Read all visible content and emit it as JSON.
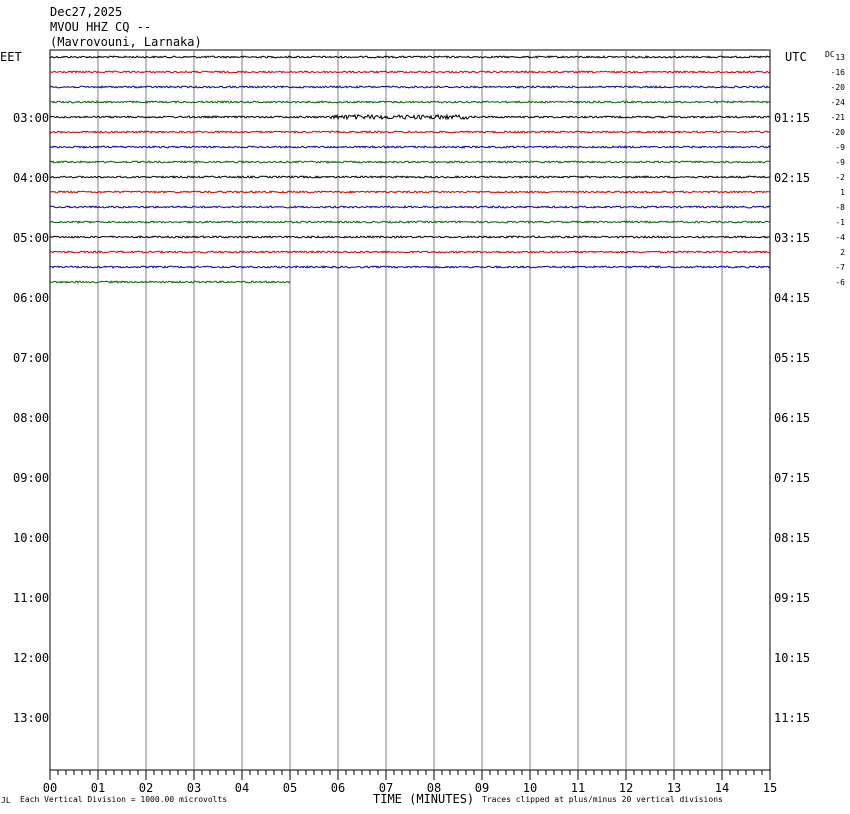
{
  "header": {
    "date": "Dec27,2025",
    "station": "MVOU HHZ CQ --",
    "location": "(Mavrovouni, Larnaka)"
  },
  "left_tz": "EET",
  "right_tz": "UTC",
  "dc_label": "DC",
  "footer": {
    "left_mark": "JL",
    "scale_note": "Each Vertical Division = 1000.00 microvolts",
    "axis_title": "TIME (MINUTES)",
    "clip_note": "Traces clipped at plus/minus 20 vertical divisions"
  },
  "chart_data": {
    "type": "line",
    "title": "",
    "xlabel": "TIME (MINUTES)",
    "ylabel": "",
    "xlim": [
      0,
      15
    ],
    "x_ticks": [
      "00",
      "01",
      "02",
      "03",
      "04",
      "05",
      "06",
      "07",
      "08",
      "09",
      "10",
      "11",
      "12",
      "13",
      "14",
      "15"
    ],
    "hour_labels_left": [
      "03:00",
      "04:00",
      "05:00",
      "06:00",
      "07:00",
      "08:00",
      "09:00",
      "10:00",
      "11:00",
      "12:00",
      "13:00"
    ],
    "hour_labels_right": [
      "01:15",
      "02:15",
      "03:15",
      "04:15",
      "05:15",
      "06:15",
      "07:15",
      "08:15",
      "09:15",
      "10:15",
      "11:15"
    ],
    "trace_colors": [
      "#000000",
      "#cc0000",
      "#0000aa",
      "#006600"
    ],
    "traces": [
      {
        "dc": "13",
        "end_minute": 15
      },
      {
        "dc": "-16",
        "end_minute": 15
      },
      {
        "dc": "-20",
        "end_minute": 15
      },
      {
        "dc": "-24",
        "end_minute": 15
      },
      {
        "dc": "-21",
        "end_minute": 15
      },
      {
        "dc": "-20",
        "end_minute": 15
      },
      {
        "dc": "-9",
        "end_minute": 15
      },
      {
        "dc": "-9",
        "end_minute": 15
      },
      {
        "dc": "-2",
        "end_minute": 15
      },
      {
        "dc": "1",
        "end_minute": 15
      },
      {
        "dc": "-8",
        "end_minute": 15
      },
      {
        "dc": "-1",
        "end_minute": 15
      },
      {
        "dc": "-4",
        "end_minute": 15
      },
      {
        "dc": "2",
        "end_minute": 15
      },
      {
        "dc": "-7",
        "end_minute": 15
      },
      {
        "dc": "-6",
        "end_minute": 5
      }
    ]
  }
}
